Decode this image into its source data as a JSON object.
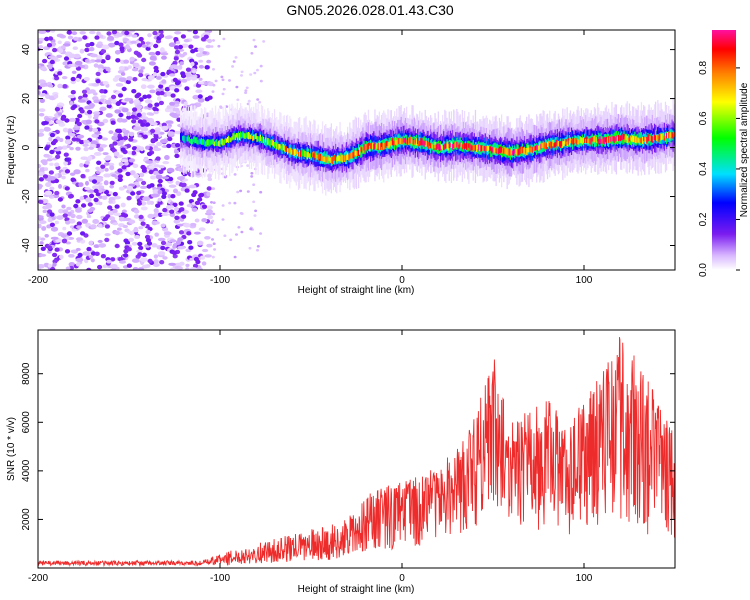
{
  "title": "GN05.2026.028.01.43.C30",
  "chart_data": [
    {
      "type": "heatmap",
      "xlabel": "Height of straight line (km)",
      "ylabel": "Frequency (Hz)",
      "xlim": [
        -200,
        150
      ],
      "ylim": [
        -50,
        48
      ],
      "xticks": [
        -200,
        -100,
        0,
        100
      ],
      "yticks": [
        -40,
        -20,
        0,
        20,
        40
      ],
      "colorbar": {
        "label": "Normalized spectral amplitude",
        "range": [
          0,
          0.95
        ],
        "ticks": [
          0.0,
          0.2,
          0.4,
          0.6,
          0.8
        ],
        "colormap": [
          "#f0e0ff",
          "#8a2be2",
          "#0000ff",
          "#00ffff",
          "#00ff00",
          "#ffff00",
          "#ff8000",
          "#ff0000",
          "#ff00aa"
        ]
      },
      "noise_region": {
        "x_from": -200,
        "x_to": -105,
        "freq_range": [
          -50,
          48
        ],
        "amplitude": 0.05
      },
      "ridge": {
        "description_points_x": [
          -122,
          -110,
          -100,
          -90,
          -80,
          -70,
          -60,
          -50,
          -40,
          -30,
          -20,
          -10,
          0,
          10,
          20,
          30,
          40,
          50,
          60,
          70,
          80,
          90,
          100,
          110,
          120,
          130,
          140,
          150
        ],
        "frequency_hz": [
          4,
          2,
          2,
          5,
          4,
          1,
          -2,
          -3,
          -5,
          -4,
          0,
          1,
          3,
          2,
          0,
          1,
          0,
          -1,
          -2,
          -1,
          1,
          2,
          3,
          3,
          4,
          3,
          4,
          5
        ],
        "peak_amplitude": [
          0.35,
          0.45,
          0.5,
          0.55,
          0.55,
          0.6,
          0.65,
          0.7,
          0.75,
          0.75,
          0.8,
          0.8,
          0.85,
          0.85,
          0.85,
          0.85,
          0.85,
          0.85,
          0.85,
          0.85,
          0.8,
          0.8,
          0.8,
          0.85,
          0.85,
          0.85,
          0.8,
          0.75
        ]
      }
    },
    {
      "type": "line",
      "xlabel": "Height of straight line (km)",
      "ylabel": "SNR (10 * v/v)",
      "xlim": [
        -200,
        150
      ],
      "ylim": [
        0,
        9800
      ],
      "xticks": [
        -200,
        -100,
        0,
        100
      ],
      "yticks": [
        2000,
        4000,
        6000,
        8000
      ],
      "series": [
        {
          "name": "SNR",
          "color": "#ee2b2b",
          "envelope_x": [
            -200,
            -110,
            -100,
            -90,
            -80,
            -70,
            -60,
            -50,
            -40,
            -30,
            -25,
            -20,
            -10,
            0,
            10,
            20,
            30,
            40,
            50,
            60,
            70,
            80,
            90,
            100,
            110,
            120,
            130,
            140,
            150
          ],
          "envelope_max": [
            300,
            300,
            600,
            800,
            1000,
            1200,
            1400,
            1600,
            1800,
            2000,
            2600,
            3000,
            3400,
            3600,
            3800,
            4200,
            5000,
            6200,
            8800,
            6000,
            6500,
            7000,
            6000,
            7000,
            8000,
            9700,
            8500,
            7000,
            5600
          ],
          "envelope_min": [
            100,
            100,
            100,
            150,
            200,
            200,
            250,
            300,
            300,
            400,
            500,
            600,
            700,
            800,
            900,
            1100,
            1300,
            1500,
            2000,
            1500,
            1400,
            1600,
            1200,
            1400,
            1600,
            1200,
            1000,
            800,
            800
          ]
        }
      ]
    }
  ]
}
